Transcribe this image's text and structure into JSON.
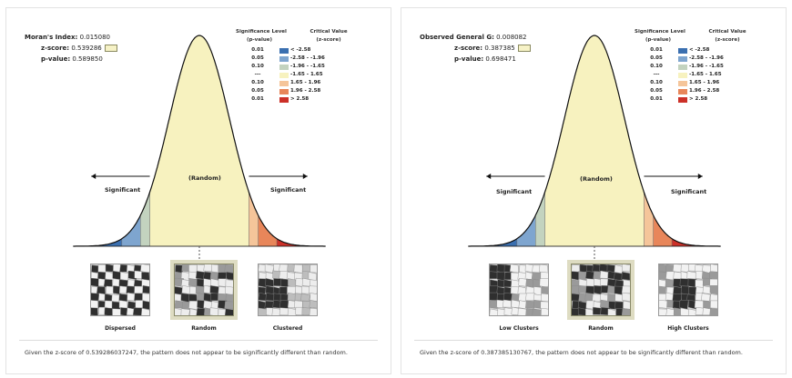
{
  "panels": [
    {
      "id": "morans",
      "stats": [
        {
          "label": "Moran's Index:",
          "value": "0.015080"
        },
        {
          "label": "z-score:",
          "value": "0.539286"
        },
        {
          "label": "p-value:",
          "value": "0.589850"
        }
      ],
      "legend": {
        "header_sig": "Significance Level\n(p-value)",
        "header_crit": "Critical Value\n(z-score)",
        "rows": [
          {
            "p": "0.01",
            "z": "< -2.58",
            "color": "#3a6fb0"
          },
          {
            "p": "0.05",
            "z": "-2.58 - -1.96",
            "color": "#7ea5cf"
          },
          {
            "p": "0.10",
            "z": "-1.96 - -1.65",
            "color": "#c3d3bf"
          },
          {
            "p": "---",
            "z": "-1.65 - 1.65",
            "color": "#f7f2bf"
          },
          {
            "p": "0.10",
            "z": "1.65 - 1.96",
            "color": "#f5c59a"
          },
          {
            "p": "0.05",
            "z": "1.96 - 2.58",
            "color": "#e8865a"
          },
          {
            "p": "0.01",
            "z": "> 2.58",
            "color": "#cc3028"
          }
        ]
      },
      "sig_left": "Significant",
      "sig_right": "Significant",
      "random": "(Random)",
      "thumbs": [
        "Dispersed",
        "Random",
        "Clustered"
      ],
      "caption": "Given the z-score of 0.539286037247, the pattern does not appear to be significantly different than random."
    },
    {
      "id": "getis",
      "stats": [
        {
          "label": "Observed General G:",
          "value": "0.008082"
        },
        {
          "label": "z-score:",
          "value": "0.387385"
        },
        {
          "label": "p-value:",
          "value": "0.698471"
        }
      ],
      "legend": {
        "header_sig": "Significance Level\n(p-value)",
        "header_crit": "Critical Value\n(z-score)",
        "rows": [
          {
            "p": "0.01",
            "z": "< -2.58",
            "color": "#3a6fb0"
          },
          {
            "p": "0.05",
            "z": "-2.58 - -1.96",
            "color": "#7ea5cf"
          },
          {
            "p": "0.10",
            "z": "-1.96 - -1.65",
            "color": "#c3d3bf"
          },
          {
            "p": "---",
            "z": "-1.65 - 1.65",
            "color": "#f7f2bf"
          },
          {
            "p": "0.10",
            "z": "1.65 - 1.96",
            "color": "#f5c59a"
          },
          {
            "p": "0.05",
            "z": "1.96 - 2.58",
            "color": "#e8865a"
          },
          {
            "p": "0.01",
            "z": "> 2.58",
            "color": "#cc3028"
          }
        ]
      },
      "sig_left": "Significant",
      "sig_right": "Significant",
      "random": "(Random)",
      "thumbs": [
        "Low Clusters",
        "Random",
        "High Clusters"
      ],
      "caption": "Given the z-score of 0.387385130767, the pattern does not appear to be significantly different than random."
    }
  ]
}
